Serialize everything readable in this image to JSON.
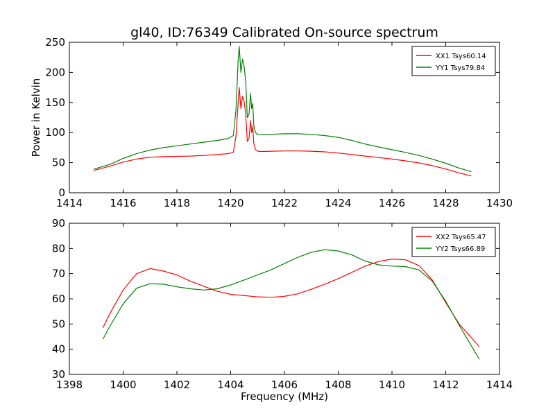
{
  "figure": {
    "title": "gl40, ID:76349 Calibrated On-source spectrum",
    "xlabel": "Frequency (MHz)"
  },
  "chart_data": [
    {
      "type": "line",
      "title": "gl40, ID:76349 Calibrated On-source spectrum",
      "xlabel": "",
      "ylabel": "Power in Kelvin",
      "xlim": [
        1414,
        1430
      ],
      "ylim": [
        0,
        250
      ],
      "xticks": [
        1414,
        1416,
        1418,
        1420,
        1422,
        1424,
        1426,
        1428,
        1430
      ],
      "yticks": [
        0,
        50,
        100,
        150,
        200,
        250
      ],
      "grid": false,
      "legend": "top-right",
      "series": [
        {
          "name": "XX1 Tsys60.14",
          "color": "#ff0000",
          "x": [
            1414.9,
            1415.5,
            1416.0,
            1416.5,
            1417.0,
            1417.5,
            1418.0,
            1418.5,
            1419.0,
            1419.5,
            1419.9,
            1420.1,
            1420.2,
            1420.28,
            1420.32,
            1420.38,
            1420.44,
            1420.5,
            1420.56,
            1420.62,
            1420.68,
            1420.74,
            1420.78,
            1420.82,
            1420.86,
            1420.92,
            1421.0,
            1421.2,
            1421.5,
            1422.0,
            1422.5,
            1423.0,
            1423.5,
            1424.0,
            1424.5,
            1425.0,
            1425.5,
            1426.0,
            1426.5,
            1427.0,
            1427.5,
            1428.0,
            1428.5,
            1428.95
          ],
          "y": [
            37,
            44,
            51,
            56,
            59,
            60,
            60.5,
            61,
            62,
            63.5,
            65,
            67,
            95,
            150,
            175,
            140,
            160,
            152,
            130,
            85,
            90,
            120,
            100,
            110,
            82,
            72,
            69,
            68.5,
            69,
            69.5,
            69.5,
            69,
            68,
            66,
            63.5,
            61,
            58.5,
            56,
            53,
            49.5,
            45,
            39.5,
            33,
            28
          ]
        },
        {
          "name": "YY1 Tsys79.84",
          "color": "#008000",
          "x": [
            1414.9,
            1415.5,
            1416.0,
            1416.5,
            1417.0,
            1417.5,
            1418.0,
            1418.5,
            1419.0,
            1419.5,
            1419.9,
            1420.1,
            1420.2,
            1420.28,
            1420.32,
            1420.38,
            1420.44,
            1420.5,
            1420.56,
            1420.62,
            1420.68,
            1420.74,
            1420.78,
            1420.82,
            1420.86,
            1420.92,
            1421.0,
            1421.2,
            1421.5,
            1422.0,
            1422.5,
            1423.0,
            1423.5,
            1424.0,
            1424.5,
            1425.0,
            1425.5,
            1426.0,
            1426.5,
            1427.0,
            1427.5,
            1428.0,
            1428.5,
            1428.95
          ],
          "y": [
            39,
            47,
            57,
            65,
            71,
            75,
            78,
            81,
            84,
            87,
            90,
            95,
            140,
            220,
            243,
            200,
            222,
            210,
            185,
            125,
            130,
            165,
            140,
            148,
            112,
            100,
            97,
            96.5,
            97,
            98,
            98,
            97,
            95,
            92,
            87,
            81,
            76,
            71.5,
            67,
            62,
            56,
            49,
            41,
            35
          ]
        }
      ]
    },
    {
      "type": "line",
      "title": "",
      "xlabel": "Frequency (MHz)",
      "ylabel": "",
      "xlim": [
        1398,
        1414
      ],
      "ylim": [
        30,
        90
      ],
      "xticks": [
        1398,
        1400,
        1402,
        1404,
        1406,
        1408,
        1410,
        1412,
        1414
      ],
      "yticks": [
        30,
        40,
        50,
        60,
        70,
        80,
        90
      ],
      "grid": false,
      "legend": "top-right",
      "series": [
        {
          "name": "XX2 Tsys65.47",
          "color": "#ff0000",
          "x": [
            1399.25,
            1399.5,
            1400.0,
            1400.5,
            1401.0,
            1401.5,
            1402.0,
            1402.5,
            1403.0,
            1403.5,
            1404.0,
            1404.5,
            1405.0,
            1405.5,
            1406.0,
            1406.5,
            1407.0,
            1407.5,
            1408.0,
            1408.5,
            1409.0,
            1409.5,
            1410.0,
            1410.5,
            1411.0,
            1411.5,
            1412.0,
            1412.5,
            1413.0,
            1413.25
          ],
          "y": [
            48.5,
            54,
            63.5,
            70,
            72,
            71,
            69.5,
            67,
            65,
            63,
            61.8,
            61.3,
            60.8,
            60.6,
            61,
            62,
            63.8,
            65.8,
            68,
            70.5,
            73,
            74.8,
            75.8,
            75.5,
            73.2,
            67.5,
            58.5,
            50,
            44,
            41
          ]
        },
        {
          "name": "YY2 Tsys66.89",
          "color": "#008000",
          "x": [
            1399.25,
            1399.5,
            1400.0,
            1400.5,
            1401.0,
            1401.5,
            1402.0,
            1402.5,
            1403.0,
            1403.5,
            1404.0,
            1404.5,
            1405.0,
            1405.5,
            1406.0,
            1406.5,
            1407.0,
            1407.5,
            1408.0,
            1408.5,
            1409.0,
            1409.5,
            1410.0,
            1410.5,
            1411.0,
            1411.5,
            1412.0,
            1412.5,
            1413.0,
            1413.25
          ],
          "y": [
            44,
            49,
            58,
            64.2,
            66,
            65.8,
            64.8,
            64,
            63.5,
            64,
            65.5,
            67.5,
            69.5,
            71.5,
            74,
            76.5,
            78.5,
            79.5,
            79,
            77.5,
            75,
            73.5,
            73,
            72.8,
            71.5,
            67,
            59,
            49.5,
            40.5,
            36
          ]
        }
      ]
    }
  ]
}
